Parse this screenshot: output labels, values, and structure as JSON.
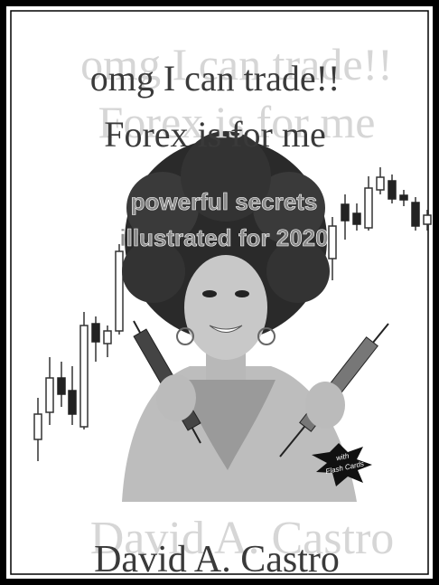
{
  "cover": {
    "title_lines": [
      "omg I can trade!!",
      "Forex is for me"
    ],
    "tagline_lines": [
      "powerful secrets",
      "illustrated for 2020"
    ],
    "author": "David A. Castro",
    "badge_lines": [
      "with",
      "Flash Cards"
    ]
  }
}
